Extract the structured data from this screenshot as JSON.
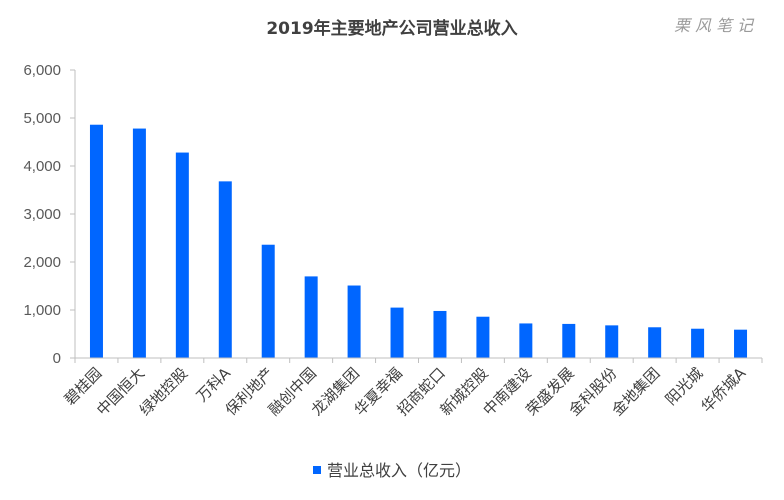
{
  "watermark": "栗风笔记",
  "colors": {
    "bar": "#0066ff",
    "axis": "#bfbfbf",
    "grid": "#d9d9d9"
  },
  "chart_data": {
    "type": "bar",
    "title": "2019年主要地产公司营业总收入",
    "xlabel": "",
    "ylabel": "",
    "ylim": [
      0,
      6000
    ],
    "yticks": [
      "0",
      "1,000",
      "2,000",
      "3,000",
      "4,000",
      "5,000",
      "6,000"
    ],
    "grid": false,
    "legend_position": "bottom",
    "categories": [
      "碧桂园",
      "中国恒大",
      "绿地控股",
      "万科A",
      "保利地产",
      "融创中国",
      "龙湖集团",
      "华夏幸福",
      "招商蛇口",
      "新城控股",
      "中南建设",
      "荣盛发展",
      "金科股份",
      "金地集团",
      "阳光城",
      "华侨城A"
    ],
    "series": [
      {
        "name": "营业总收入（亿元）",
        "values": [
          4860,
          4780,
          4280,
          3680,
          2360,
          1700,
          1510,
          1050,
          980,
          860,
          720,
          710,
          680,
          640,
          610,
          590
        ]
      }
    ]
  }
}
